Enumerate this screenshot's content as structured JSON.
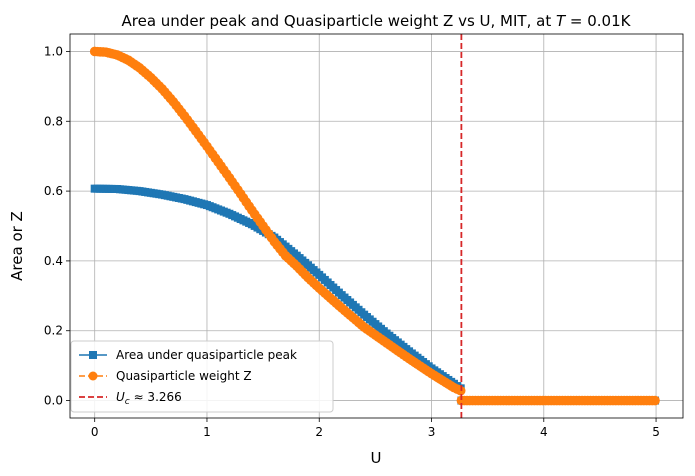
{
  "chart_data": {
    "type": "line",
    "title_main": "Area under peak and Quasiparticle weight Z vs U, MIT, at ",
    "title_var": "T",
    "title_tail": " = 0.01K",
    "xlabel": "U",
    "ylabel": "Area or Z",
    "xlim": [
      -0.22,
      5.24
    ],
    "ylim": [
      -0.05,
      1.05
    ],
    "xticks": [
      0,
      1,
      2,
      3,
      4,
      5
    ],
    "xtick_labels": [
      "0",
      "1",
      "2",
      "3",
      "4",
      "5"
    ],
    "yticks": [
      0.0,
      0.2,
      0.4,
      0.6,
      0.8,
      1.0
    ],
    "ytick_labels": [
      "0.0",
      "0.2",
      "0.4",
      "0.6",
      "0.8",
      "1.0"
    ],
    "grid": true,
    "legend_position": "lower-left",
    "critical_line": {
      "x": 3.266,
      "legend_sym": "U",
      "legend_sub": "c",
      "legend_rest": " ≈ 3.266",
      "color": "#d62728"
    },
    "series": [
      {
        "name": "Area under quasiparticle peak",
        "color": "#1f77b4",
        "marker": "square",
        "style": "solid",
        "points": [
          [
            0.0,
            0.607
          ],
          [
            0.2,
            0.606
          ],
          [
            0.4,
            0.6
          ],
          [
            0.6,
            0.59
          ],
          [
            0.8,
            0.577
          ],
          [
            1.0,
            0.56
          ],
          [
            1.2,
            0.535
          ],
          [
            1.4,
            0.505
          ],
          [
            1.6,
            0.467
          ],
          [
            1.8,
            0.415
          ],
          [
            2.0,
            0.36
          ],
          [
            2.2,
            0.302
          ],
          [
            2.4,
            0.246
          ],
          [
            2.6,
            0.192
          ],
          [
            2.8,
            0.141
          ],
          [
            3.0,
            0.092
          ],
          [
            3.2,
            0.048
          ],
          [
            3.26,
            0.035
          ]
        ],
        "flat_segment": {
          "from": 3.266,
          "to": 5.0,
          "value": 0.0
        }
      },
      {
        "name": "Quasiparticle weight Z",
        "color": "#ff7f0e",
        "marker": "circle",
        "style": "dashed",
        "points": [
          [
            0.0,
            1.0
          ],
          [
            0.1,
            0.998
          ],
          [
            0.2,
            0.99
          ],
          [
            0.3,
            0.975
          ],
          [
            0.4,
            0.953
          ],
          [
            0.5,
            0.925
          ],
          [
            0.6,
            0.893
          ],
          [
            0.7,
            0.856
          ],
          [
            0.8,
            0.815
          ],
          [
            0.9,
            0.772
          ],
          [
            1.0,
            0.728
          ],
          [
            1.1,
            0.683
          ],
          [
            1.2,
            0.638
          ],
          [
            1.3,
            0.592
          ],
          [
            1.4,
            0.545
          ],
          [
            1.5,
            0.5
          ],
          [
            1.6,
            0.455
          ],
          [
            1.7,
            0.415
          ],
          [
            1.8,
            0.385
          ],
          [
            1.9,
            0.352
          ],
          [
            2.0,
            0.322
          ],
          [
            2.2,
            0.265
          ],
          [
            2.4,
            0.21
          ],
          [
            2.6,
            0.165
          ],
          [
            2.8,
            0.12
          ],
          [
            3.0,
            0.077
          ],
          [
            3.2,
            0.037
          ],
          [
            3.26,
            0.028
          ]
        ],
        "flat_segment": {
          "from": 3.266,
          "to": 5.0,
          "value": 0.0
        }
      }
    ]
  }
}
